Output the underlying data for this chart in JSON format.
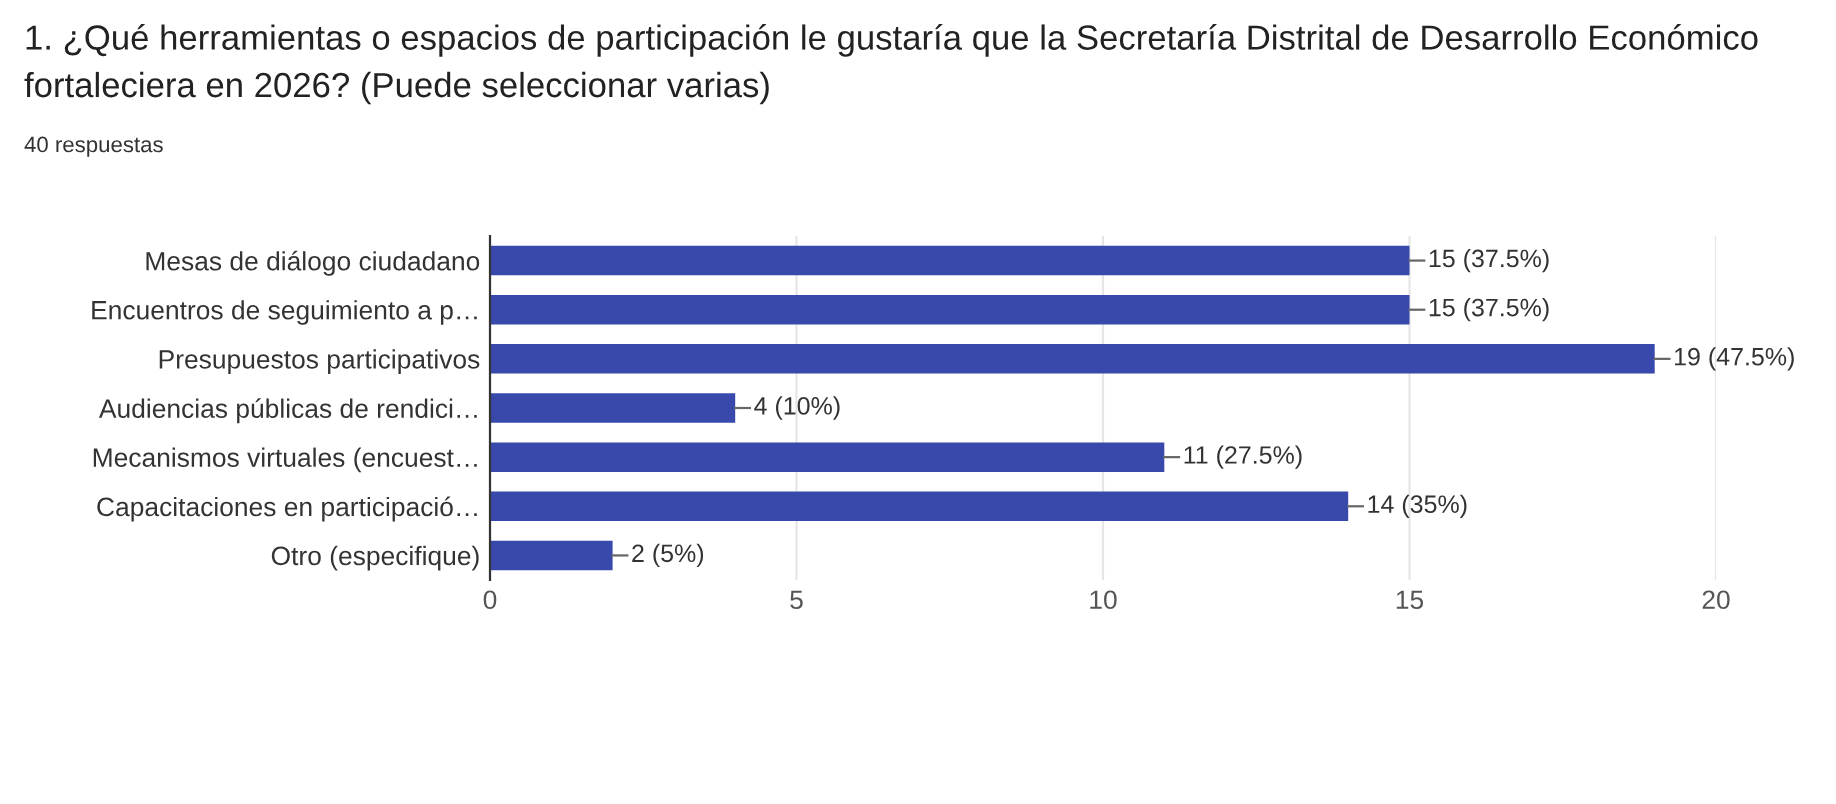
{
  "chart_data": {
    "type": "bar",
    "orientation": "horizontal",
    "title": "1. ¿Qué herramientas o espacios de participación le gustaría que la Secretaría Distrital de Desarrollo Económico fortaleciera en 2026? (Puede seleccionar varias)",
    "subtitle": "40 respuestas",
    "categories": [
      "Mesas de diálogo ciudadano",
      "Encuentros de seguimiento a p…",
      "Presupuestos participativos",
      "Audiencias públicas de rendici…",
      "Mecanismos virtuales (encuest…",
      "Capacitaciones en participació…",
      "Otro (especifique)"
    ],
    "values": [
      15,
      15,
      19,
      4,
      11,
      14,
      2
    ],
    "value_labels": [
      "15 (37.5%)",
      "15 (37.5%)",
      "19 (47.5%)",
      "4 (10%)",
      "11 (27.5%)",
      "14 (35%)",
      "2 (5%)"
    ],
    "color": "#3949ab",
    "xlim": [
      0,
      20
    ],
    "xticks": [
      0,
      5,
      10,
      15,
      20
    ],
    "grid": "x",
    "legend": false
  }
}
